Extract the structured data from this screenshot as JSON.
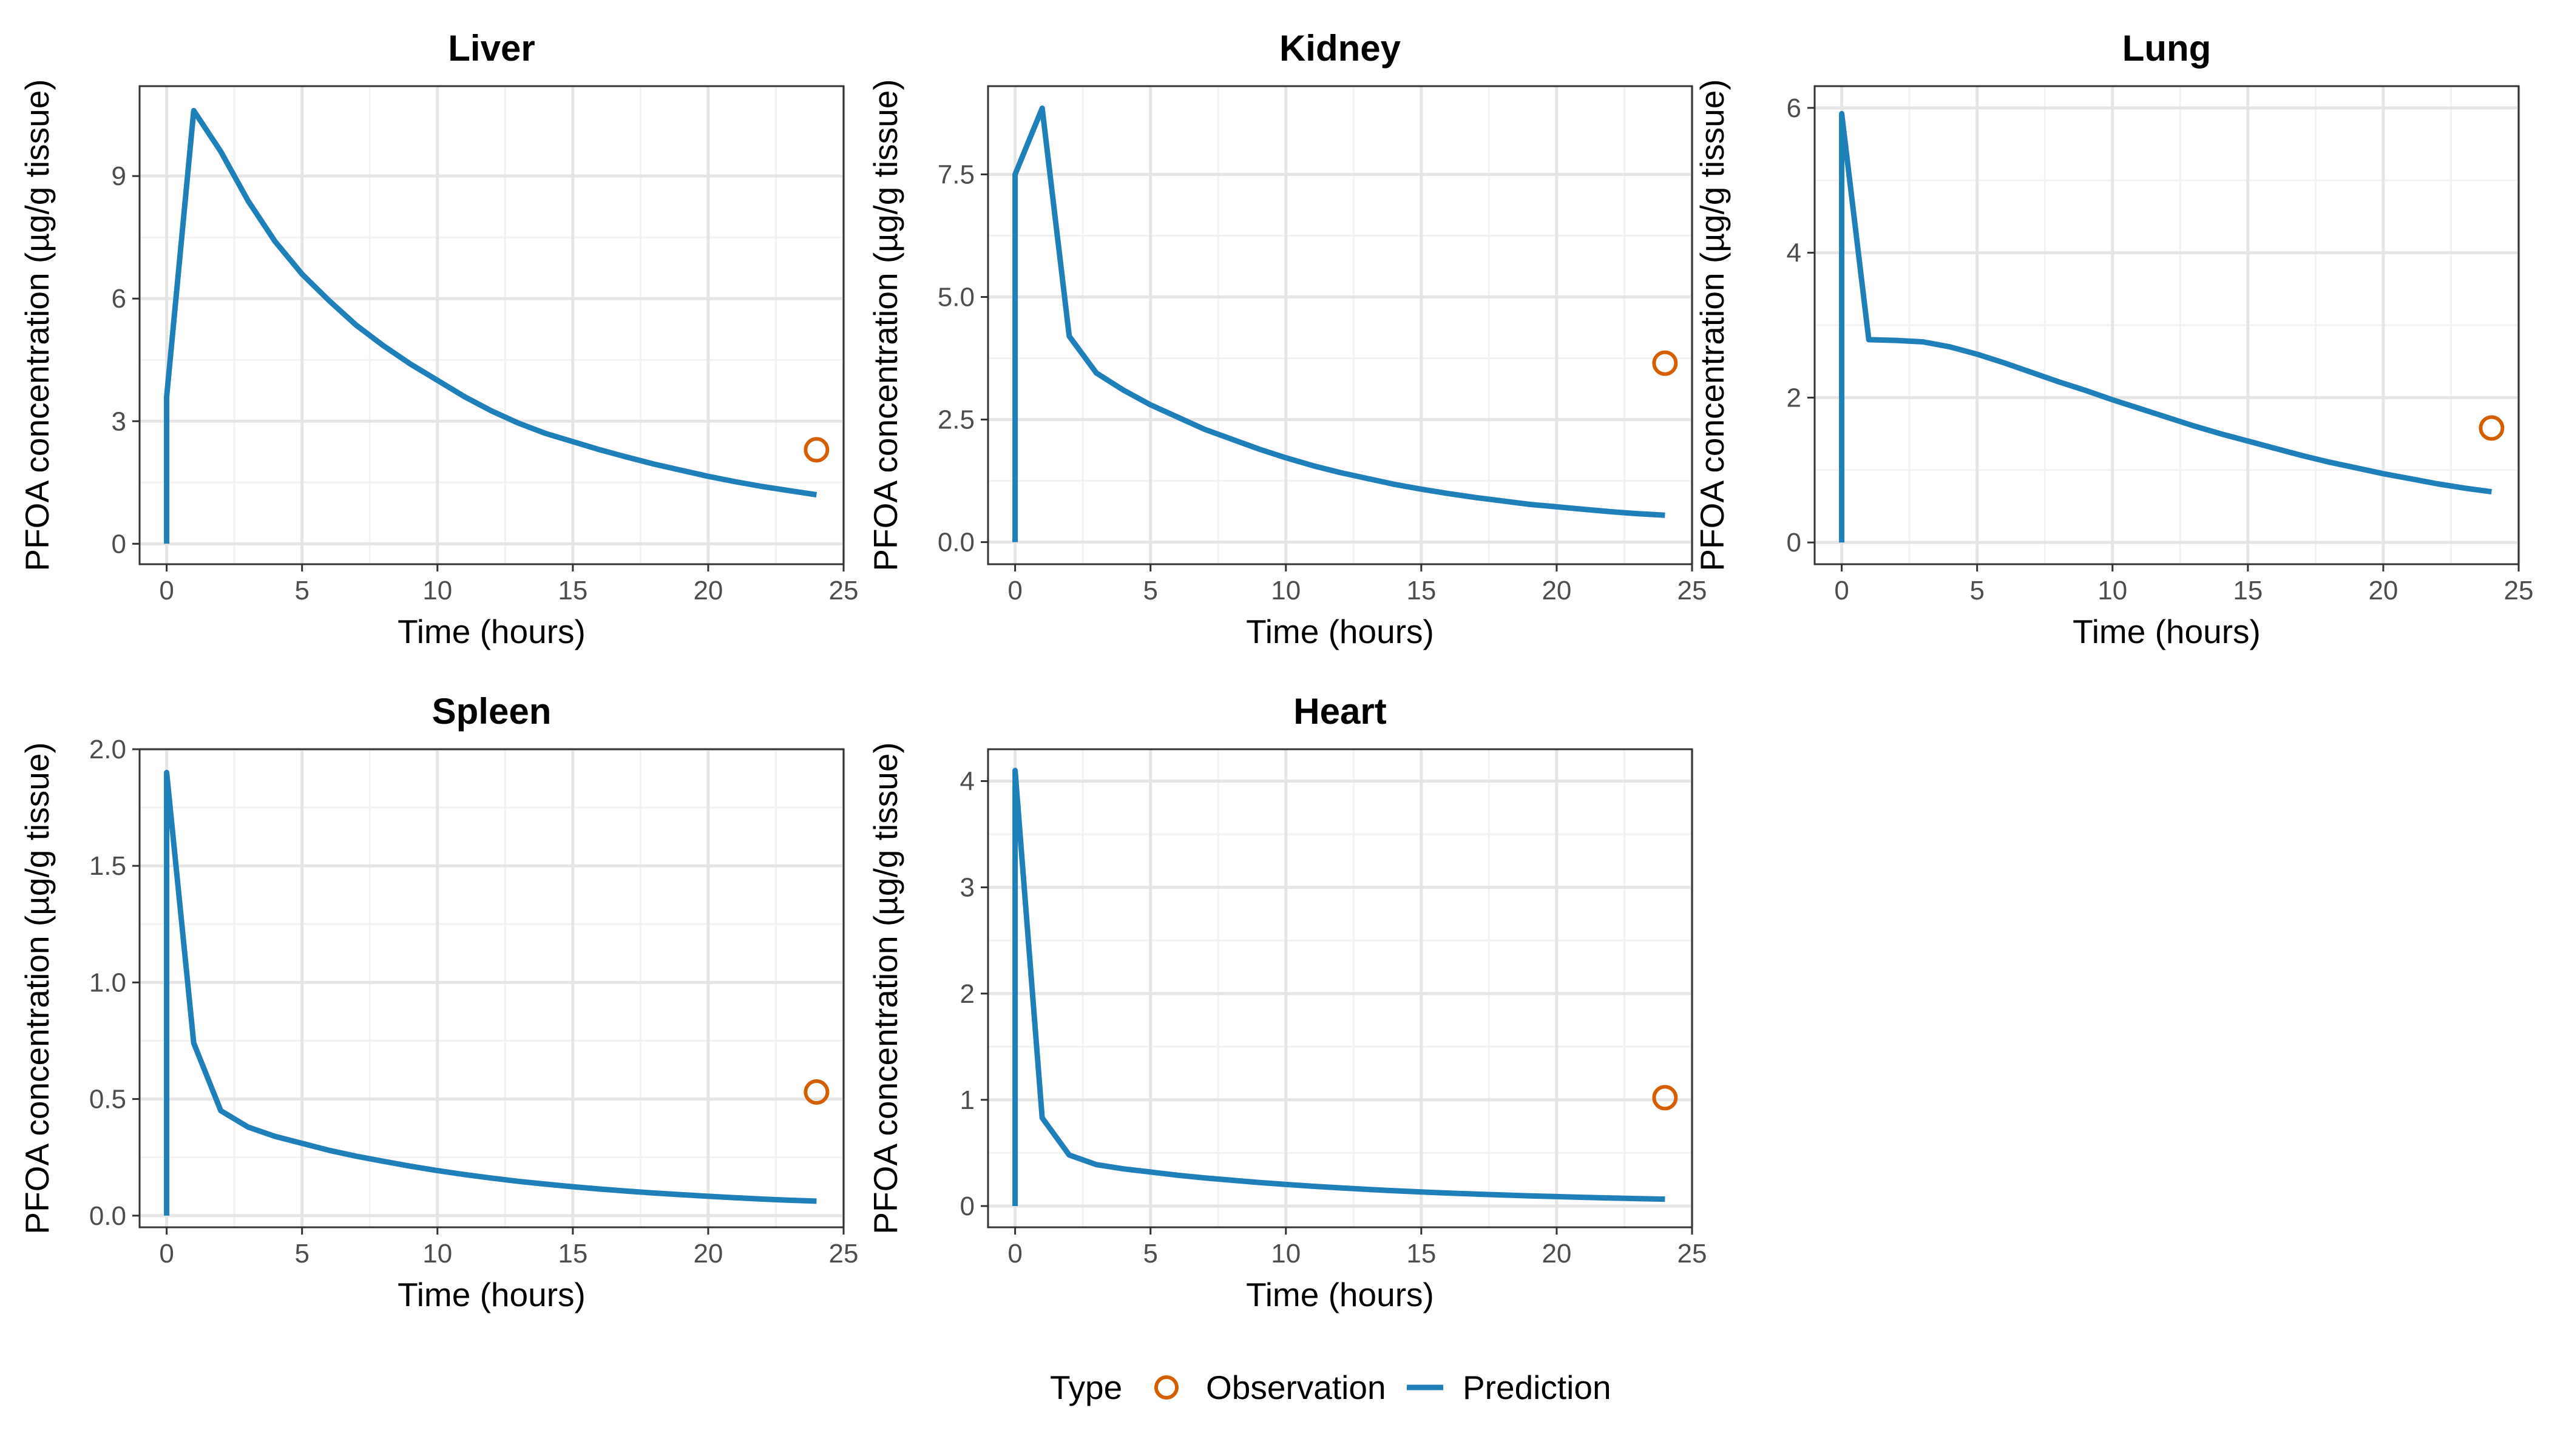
{
  "colors": {
    "observation": "#d55e00",
    "prediction": "#1f7fb8",
    "grid": "#e5e5e5",
    "panel_border": "#333333",
    "tick_text": "#4d4d4d"
  },
  "legend": {
    "title": "Type",
    "items": [
      {
        "label": "Observation",
        "kind": "point"
      },
      {
        "label": "Prediction",
        "kind": "line"
      }
    ]
  },
  "chart_data": [
    {
      "type": "line",
      "title": "Liver",
      "xlabel": "Time (hours)",
      "ylabel": "PFOA concentration (µg/g tissue)",
      "xlim": [
        -1,
        25
      ],
      "ylim": [
        -0.5,
        11.2
      ],
      "xticks": [
        0,
        5,
        10,
        15,
        20,
        25
      ],
      "yticks": [
        0,
        3,
        6,
        9
      ],
      "ytick_labels": [
        "0",
        "3",
        "6",
        "9"
      ],
      "grid": true,
      "prediction": {
        "x": [
          0,
          0,
          1,
          2,
          3,
          4,
          5,
          6,
          7,
          8,
          9,
          10,
          11,
          12,
          13,
          14,
          15,
          16,
          17,
          18,
          19,
          20,
          21,
          22,
          23,
          24
        ],
        "y": [
          0,
          3.6,
          10.6,
          9.6,
          8.4,
          7.4,
          6.6,
          5.95,
          5.35,
          4.85,
          4.4,
          4.0,
          3.6,
          3.25,
          2.95,
          2.7,
          2.5,
          2.3,
          2.12,
          1.95,
          1.8,
          1.65,
          1.52,
          1.4,
          1.3,
          1.2
        ]
      },
      "observation": {
        "x": [
          24
        ],
        "y": [
          2.3
        ]
      }
    },
    {
      "type": "line",
      "title": "Kidney",
      "xlabel": "Time (hours)",
      "ylabel": "PFOA concentration (µg/g tissue)",
      "xlim": [
        -1,
        25
      ],
      "ylim": [
        -0.45,
        9.3
      ],
      "xticks": [
        0,
        5,
        10,
        15,
        20,
        25
      ],
      "yticks": [
        0,
        2.5,
        5,
        7.5
      ],
      "ytick_labels": [
        "0.0",
        "2.5",
        "5.0",
        "7.5"
      ],
      "grid": true,
      "prediction": {
        "x": [
          0,
          0,
          1,
          2,
          3,
          4,
          5,
          6,
          7,
          8,
          9,
          10,
          11,
          12,
          13,
          14,
          15,
          16,
          17,
          18,
          19,
          20,
          21,
          22,
          23,
          24
        ],
        "y": [
          0,
          7.5,
          8.85,
          4.2,
          3.45,
          3.1,
          2.8,
          2.55,
          2.3,
          2.1,
          1.9,
          1.72,
          1.56,
          1.42,
          1.3,
          1.18,
          1.08,
          0.99,
          0.91,
          0.84,
          0.77,
          0.72,
          0.67,
          0.62,
          0.58,
          0.55
        ]
      },
      "observation": {
        "x": [
          24
        ],
        "y": [
          3.65
        ]
      }
    },
    {
      "type": "line",
      "title": "Lung",
      "xlabel": "Time (hours)",
      "ylabel": "PFOA concentration (µg/g tissue)",
      "xlim": [
        -1,
        25
      ],
      "ylim": [
        -0.3,
        6.3
      ],
      "xticks": [
        0,
        5,
        10,
        15,
        20,
        25
      ],
      "yticks": [
        0,
        2,
        4,
        6
      ],
      "ytick_labels": [
        "0",
        "2",
        "4",
        "6"
      ],
      "grid": true,
      "prediction": {
        "x": [
          0,
          0,
          1,
          2,
          3,
          4,
          5,
          6,
          7,
          8,
          9,
          10,
          11,
          12,
          13,
          14,
          15,
          16,
          17,
          18,
          19,
          20,
          21,
          22,
          23,
          24
        ],
        "y": [
          0,
          5.92,
          2.8,
          2.79,
          2.77,
          2.7,
          2.6,
          2.48,
          2.35,
          2.22,
          2.1,
          1.97,
          1.85,
          1.73,
          1.61,
          1.5,
          1.4,
          1.3,
          1.2,
          1.11,
          1.03,
          0.95,
          0.88,
          0.81,
          0.75,
          0.7
        ]
      },
      "observation": {
        "x": [
          24
        ],
        "y": [
          1.58
        ]
      }
    },
    {
      "type": "line",
      "title": "Spleen",
      "xlabel": "Time (hours)",
      "ylabel": "PFOA concentration (µg/g tissue)",
      "xlim": [
        -1,
        25
      ],
      "ylim": [
        -0.05,
        2.0
      ],
      "xticks": [
        0,
        5,
        10,
        15,
        20,
        25
      ],
      "yticks": [
        0,
        0.5,
        1,
        1.5,
        2
      ],
      "ytick_labels": [
        "0.0",
        "0.5",
        "1.0",
        "1.5",
        "2.0"
      ],
      "grid": true,
      "prediction": {
        "x": [
          0,
          0,
          1,
          2,
          3,
          4,
          5,
          6,
          7,
          8,
          9,
          10,
          11,
          12,
          13,
          14,
          15,
          16,
          17,
          18,
          19,
          20,
          21,
          22,
          23,
          24
        ],
        "y": [
          0,
          1.9,
          0.74,
          0.45,
          0.38,
          0.34,
          0.31,
          0.28,
          0.255,
          0.233,
          0.212,
          0.193,
          0.176,
          0.161,
          0.147,
          0.135,
          0.124,
          0.114,
          0.105,
          0.097,
          0.09,
          0.083,
          0.077,
          0.071,
          0.066,
          0.062
        ]
      },
      "observation": {
        "x": [
          24
        ],
        "y": [
          0.53
        ]
      }
    },
    {
      "type": "line",
      "title": "Heart",
      "xlabel": "Time (hours)",
      "ylabel": "PFOA concentration (µg/g tissue)",
      "xlim": [
        -1,
        25
      ],
      "ylim": [
        -0.2,
        4.3
      ],
      "xticks": [
        0,
        5,
        10,
        15,
        20,
        25
      ],
      "yticks": [
        0,
        1,
        2,
        3,
        4
      ],
      "ytick_labels": [
        "0",
        "1",
        "2",
        "3",
        "4"
      ],
      "grid": true,
      "prediction": {
        "x": [
          0,
          0,
          1,
          2,
          3,
          4,
          5,
          6,
          7,
          8,
          9,
          10,
          11,
          12,
          13,
          14,
          15,
          16,
          17,
          18,
          19,
          20,
          21,
          22,
          23,
          24
        ],
        "y": [
          0,
          4.1,
          0.83,
          0.48,
          0.39,
          0.35,
          0.32,
          0.29,
          0.265,
          0.243,
          0.222,
          0.203,
          0.186,
          0.171,
          0.157,
          0.144,
          0.133,
          0.122,
          0.113,
          0.104,
          0.096,
          0.089,
          0.082,
          0.076,
          0.07,
          0.065
        ]
      },
      "observation": {
        "x": [
          24
        ],
        "y": [
          1.02
        ]
      }
    }
  ]
}
